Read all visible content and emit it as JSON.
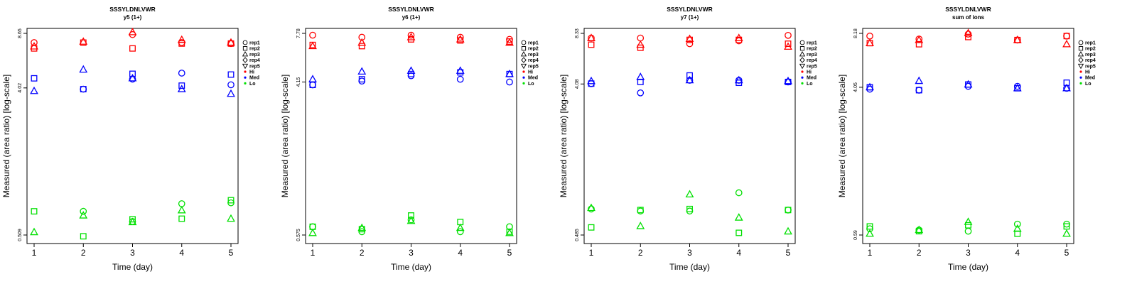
{
  "colors": {
    "Hi": "#ff0000",
    "Med": "#0000ff",
    "Lo": "#00e000",
    "axis": "#000000"
  },
  "legend": {
    "items": [
      {
        "label": "rep1",
        "symbol": "circle"
      },
      {
        "label": "rep2",
        "symbol": "square"
      },
      {
        "label": "rep3",
        "symbol": "triangle"
      },
      {
        "label": "rep4",
        "symbol": "diamond"
      },
      {
        "label": "rep5",
        "symbol": "triangle-down"
      },
      {
        "label": "Hi",
        "symbol": "dot",
        "color": "#ff0000"
      },
      {
        "label": "Med",
        "symbol": "dot",
        "color": "#0000ff"
      },
      {
        "label": "Lo",
        "symbol": "dot",
        "color": "#00e000"
      }
    ]
  },
  "chart_data": [
    {
      "type": "scatter",
      "title": "SSSYLDNLVWR",
      "subtitle": "y5 (1+)",
      "xlabel": "Time (day)",
      "ylabel": "Measured (area ratio) [log-scale]",
      "x_ticks": [
        1,
        2,
        3,
        4,
        5
      ],
      "y_ticks": [
        "0.509",
        "4.02",
        "8.65"
      ],
      "ylim": [
        0.509,
        8.65
      ],
      "yscale": "log",
      "grid": false,
      "legend_position": "right",
      "series": [
        {
          "group": "Hi",
          "rep": "rep1",
          "points": [
            [
              1,
              7.6
            ],
            [
              3,
              8.5
            ],
            [
              4,
              7.6
            ],
            [
              5,
              7.5
            ]
          ]
        },
        {
          "group": "Hi",
          "rep": "rep2",
          "points": [
            [
              1,
              7.0
            ],
            [
              2,
              7.6
            ],
            [
              3,
              7.0
            ],
            [
              4,
              7.5
            ],
            [
              5,
              7.5
            ]
          ]
        },
        {
          "group": "Hi",
          "rep": "rep3",
          "points": [
            [
              1,
              7.2
            ],
            [
              2,
              7.7
            ],
            [
              3,
              8.8
            ],
            [
              4,
              7.9
            ],
            [
              5,
              7.6
            ]
          ]
        },
        {
          "group": "Med",
          "rep": "rep1",
          "points": [
            [
              2,
              3.95
            ],
            [
              3,
              4.55
            ],
            [
              4,
              4.95
            ],
            [
              5,
              4.2
            ]
          ]
        },
        {
          "group": "Med",
          "rep": "rep2",
          "points": [
            [
              1,
              4.6
            ],
            [
              2,
              3.95
            ],
            [
              3,
              4.9
            ],
            [
              4,
              4.15
            ],
            [
              5,
              4.85
            ]
          ]
        },
        {
          "group": "Med",
          "rep": "rep3",
          "points": [
            [
              1,
              3.85
            ],
            [
              2,
              5.2
            ],
            [
              3,
              4.6
            ],
            [
              4,
              3.95
            ],
            [
              5,
              3.7
            ]
          ]
        },
        {
          "group": "Lo",
          "rep": "rep1",
          "points": [
            [
              2,
              0.71
            ],
            [
              3,
              0.615
            ],
            [
              4,
              0.79
            ],
            [
              5,
              0.8
            ]
          ]
        },
        {
          "group": "Lo",
          "rep": "rep2",
          "points": [
            [
              1,
              0.71
            ],
            [
              2,
              0.5
            ],
            [
              3,
              0.635
            ],
            [
              4,
              0.64
            ],
            [
              5,
              0.83
            ]
          ]
        },
        {
          "group": "Lo",
          "rep": "rep3",
          "points": [
            [
              1,
              0.53
            ],
            [
              2,
              0.67
            ],
            [
              3,
              0.61
            ],
            [
              4,
              0.72
            ],
            [
              5,
              0.64
            ]
          ]
        }
      ]
    },
    {
      "type": "scatter",
      "title": "SSSYLDNLVWR",
      "subtitle": "y6 (1+)",
      "xlabel": "Time (day)",
      "ylabel": "Measured (area ratio) [log-scale]",
      "x_ticks": [
        1,
        2,
        3,
        4,
        5
      ],
      "y_ticks": [
        "0.575",
        "4.15",
        "7.78"
      ],
      "ylim": [
        0.575,
        7.78
      ],
      "yscale": "log",
      "grid": false,
      "legend_position": "right",
      "series": [
        {
          "group": "Hi",
          "rep": "rep1",
          "points": [
            [
              1,
              7.6
            ],
            [
              2,
              7.4
            ],
            [
              3,
              7.6
            ],
            [
              4,
              7.4
            ],
            [
              5,
              7.2
            ]
          ]
        },
        {
          "group": "Hi",
          "rep": "rep2",
          "points": [
            [
              1,
              6.7
            ],
            [
              2,
              6.6
            ],
            [
              3,
              7.2
            ],
            [
              4,
              7.1
            ],
            [
              5,
              7.0
            ]
          ]
        },
        {
          "group": "Hi",
          "rep": "rep3",
          "points": [
            [
              1,
              6.6
            ],
            [
              2,
              6.9
            ],
            [
              3,
              7.4
            ],
            [
              4,
              7.2
            ],
            [
              5,
              6.9
            ]
          ]
        },
        {
          "group": "Med",
          "rep": "rep1",
          "points": [
            [
              1,
              4.0
            ],
            [
              2,
              4.2
            ],
            [
              3,
              4.5
            ],
            [
              4,
              4.3
            ],
            [
              5,
              4.15
            ]
          ]
        },
        {
          "group": "Med",
          "rep": "rep2",
          "points": [
            [
              1,
              4.0
            ],
            [
              2,
              4.3
            ],
            [
              3,
              4.6
            ],
            [
              4,
              4.7
            ],
            [
              5,
              4.6
            ]
          ]
        },
        {
          "group": "Med",
          "rep": "rep3",
          "points": [
            [
              1,
              4.3
            ],
            [
              2,
              4.75
            ],
            [
              3,
              4.8
            ],
            [
              4,
              4.8
            ],
            [
              5,
              4.6
            ]
          ]
        },
        {
          "group": "Lo",
          "rep": "rep1",
          "points": [
            [
              1,
              0.64
            ],
            [
              2,
              0.6
            ],
            [
              3,
              0.7
            ],
            [
              4,
              0.6
            ],
            [
              5,
              0.64
            ]
          ]
        },
        {
          "group": "Lo",
          "rep": "rep2",
          "points": [
            [
              1,
              0.64
            ],
            [
              2,
              0.62
            ],
            [
              3,
              0.74
            ],
            [
              4,
              0.68
            ],
            [
              5,
              0.6
            ]
          ]
        },
        {
          "group": "Lo",
          "rep": "rep3",
          "points": [
            [
              1,
              0.59
            ],
            [
              2,
              0.63
            ],
            [
              3,
              0.69
            ],
            [
              4,
              0.63
            ],
            [
              5,
              0.59
            ]
          ]
        }
      ]
    },
    {
      "type": "scatter",
      "title": "SSSYLDNLVWR",
      "subtitle": "y7 (1+)",
      "xlabel": "Time (day)",
      "ylabel": "Measured (area ratio) [log-scale]",
      "x_ticks": [
        1,
        2,
        3,
        4,
        5
      ],
      "y_ticks": [
        "0.485",
        "4.08",
        "8.33"
      ],
      "ylim": [
        0.485,
        8.33
      ],
      "yscale": "log",
      "grid": false,
      "legend_position": "right",
      "series": [
        {
          "group": "Hi",
          "rep": "rep1",
          "points": [
            [
              1,
              7.8
            ],
            [
              2,
              7.8
            ],
            [
              3,
              7.2
            ],
            [
              4,
              7.5
            ],
            [
              5,
              8.1
            ]
          ]
        },
        {
          "group": "Hi",
          "rep": "rep2",
          "points": [
            [
              1,
              7.1
            ],
            [
              2,
              6.8
            ],
            [
              3,
              7.6
            ],
            [
              4,
              7.6
            ],
            [
              5,
              7.2
            ]
          ]
        },
        {
          "group": "Hi",
          "rep": "rep3",
          "points": [
            [
              1,
              7.8
            ],
            [
              2,
              7.1
            ],
            [
              3,
              7.7
            ],
            [
              4,
              7.8
            ],
            [
              5,
              6.9
            ]
          ]
        },
        {
          "group": "Med",
          "rep": "rep1",
          "points": [
            [
              1,
              4.1
            ],
            [
              2,
              3.6
            ],
            [
              3,
              4.3
            ],
            [
              4,
              4.3
            ],
            [
              5,
              4.2
            ]
          ]
        },
        {
          "group": "Med",
          "rep": "rep2",
          "points": [
            [
              1,
              4.1
            ],
            [
              2,
              4.2
            ],
            [
              3,
              4.6
            ],
            [
              4,
              4.15
            ],
            [
              5,
              4.2
            ]
          ]
        },
        {
          "group": "Med",
          "rep": "rep3",
          "points": [
            [
              1,
              4.25
            ],
            [
              2,
              4.5
            ],
            [
              3,
              4.3
            ],
            [
              4,
              4.3
            ],
            [
              5,
              4.25
            ]
          ]
        },
        {
          "group": "Lo",
          "rep": "rep1",
          "points": [
            [
              1,
              0.7
            ],
            [
              2,
              0.68
            ],
            [
              3,
              0.68
            ],
            [
              4,
              0.88
            ],
            [
              5,
              0.69
            ]
          ]
        },
        {
          "group": "Lo",
          "rep": "rep2",
          "points": [
            [
              1,
              0.54
            ],
            [
              2,
              0.69
            ],
            [
              3,
              0.7
            ],
            [
              4,
              0.5
            ],
            [
              5,
              0.69
            ]
          ]
        },
        {
          "group": "Lo",
          "rep": "rep3",
          "points": [
            [
              1,
              0.71
            ],
            [
              2,
              0.55
            ],
            [
              3,
              0.86
            ],
            [
              4,
              0.62
            ],
            [
              5,
              0.51
            ]
          ]
        }
      ]
    },
    {
      "type": "scatter",
      "title": "SSSYLDNLVWR",
      "subtitle": "sum of ions",
      "xlabel": "Time (day)",
      "ylabel": "Measured (area ratio) [log-scale]",
      "x_ticks": [
        1,
        2,
        3,
        4,
        5
      ],
      "y_ticks": [
        "0.59",
        "4.05",
        "8.18"
      ],
      "ylim": [
        0.59,
        8.18
      ],
      "yscale": "log",
      "grid": false,
      "legend_position": "right",
      "series": [
        {
          "group": "Hi",
          "rep": "rep1",
          "points": [
            [
              1,
              7.9
            ],
            [
              2,
              7.6
            ],
            [
              3,
              8.1
            ],
            [
              4,
              7.5
            ],
            [
              5,
              7.9
            ]
          ]
        },
        {
          "group": "Hi",
          "rep": "rep2",
          "points": [
            [
              1,
              7.2
            ],
            [
              2,
              7.1
            ],
            [
              3,
              7.8
            ],
            [
              4,
              7.5
            ],
            [
              5,
              7.9
            ]
          ]
        },
        {
          "group": "Hi",
          "rep": "rep3",
          "points": [
            [
              1,
              7.2
            ],
            [
              2,
              7.5
            ],
            [
              3,
              8.2
            ],
            [
              4,
              7.5
            ],
            [
              5,
              7.1
            ]
          ]
        },
        {
          "group": "Med",
          "rep": "rep1",
          "points": [
            [
              1,
              3.95
            ],
            [
              2,
              3.9
            ],
            [
              3,
              4.1
            ],
            [
              4,
              4.1
            ],
            [
              5,
              4.0
            ]
          ]
        },
        {
          "group": "Med",
          "rep": "rep2",
          "points": [
            [
              1,
              4.05
            ],
            [
              2,
              3.9
            ],
            [
              3,
              4.2
            ],
            [
              4,
              4.0
            ],
            [
              5,
              4.3
            ]
          ]
        },
        {
          "group": "Med",
          "rep": "rep3",
          "points": [
            [
              1,
              4.05
            ],
            [
              2,
              4.4
            ],
            [
              3,
              4.2
            ],
            [
              4,
              4.0
            ],
            [
              5,
              4.0
            ]
          ]
        },
        {
          "group": "Lo",
          "rep": "rep1",
          "points": [
            [
              1,
              0.64
            ],
            [
              2,
              0.63
            ],
            [
              3,
              0.62
            ],
            [
              4,
              0.68
            ],
            [
              5,
              0.68
            ]
          ]
        },
        {
          "group": "Lo",
          "rep": "rep2",
          "points": [
            [
              1,
              0.66
            ],
            [
              2,
              0.62
            ],
            [
              3,
              0.67
            ],
            [
              4,
              0.6
            ],
            [
              5,
              0.66
            ]
          ]
        },
        {
          "group": "Lo",
          "rep": "rep3",
          "points": [
            [
              1,
              0.6
            ],
            [
              2,
              0.63
            ],
            [
              3,
              0.7
            ],
            [
              4,
              0.64
            ],
            [
              5,
              0.6
            ]
          ]
        }
      ]
    }
  ]
}
